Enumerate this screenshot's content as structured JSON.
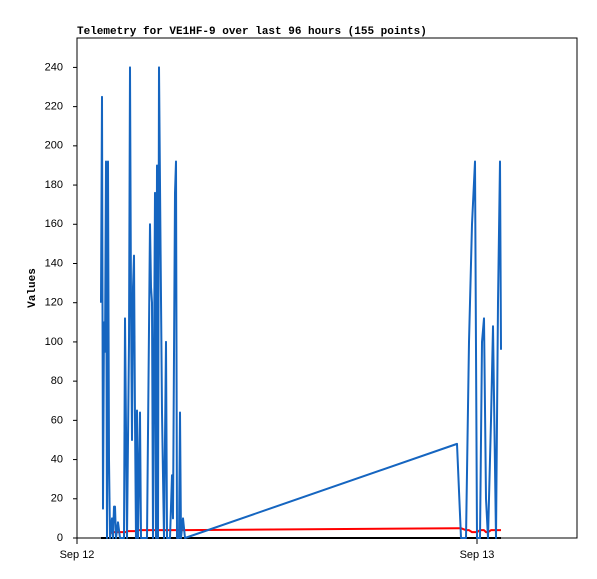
{
  "chart_data": {
    "type": "line",
    "title": "Telemetry for VE1HF-9 over last 96 hours (155 points)",
    "y_label": "Values",
    "x": [
      1.44,
      1.5,
      1.56,
      1.62,
      1.68,
      1.74,
      1.8,
      1.86,
      1.92,
      1.98,
      2.1,
      2.16,
      2.22,
      2.28,
      2.34,
      2.46,
      2.58,
      2.82,
      2.88,
      2.94,
      3.0,
      3.12,
      3.18,
      3.24,
      3.3,
      3.36,
      3.42,
      3.48,
      3.54,
      3.6,
      3.66,
      3.78,
      3.84,
      4.2,
      4.38,
      4.44,
      4.5,
      4.56,
      4.68,
      4.74,
      4.8,
      4.86,
      4.92,
      4.98,
      5.1,
      5.22,
      5.34,
      5.4,
      5.58,
      5.7,
      5.76,
      5.88,
      5.94,
      6.0,
      6.12,
      6.18,
      6.24,
      6.36,
      6.48,
      22.8,
      23.04,
      23.34,
      23.52,
      23.7,
      23.88,
      24.0,
      24.18,
      24.3,
      24.42,
      24.54,
      24.66,
      24.84,
      24.96,
      25.14,
      25.26,
      25.38,
      25.44
    ],
    "series": [
      {
        "color": "#000000",
        "values": [
          0,
          0,
          0,
          0,
          0,
          0,
          0,
          0,
          0,
          0,
          0,
          0,
          0,
          0,
          0,
          0,
          0,
          0,
          0,
          0,
          0,
          0,
          0,
          0,
          0,
          0,
          0,
          0,
          0,
          0,
          0,
          0,
          0,
          0,
          0,
          0,
          0,
          0,
          0,
          0,
          0,
          0,
          0,
          0,
          0,
          0,
          0,
          0,
          0,
          0,
          0,
          0,
          0,
          0,
          0,
          0,
          0,
          0,
          0,
          0,
          0,
          0,
          0,
          0,
          0,
          0,
          0,
          0,
          0,
          0,
          0,
          0,
          0,
          0,
          0,
          0,
          0
        ]
      },
      {
        "color": "#ff0000",
        "values": [
          null,
          null,
          null,
          null,
          null,
          null,
          null,
          null,
          null,
          2,
          3,
          3,
          3,
          3,
          3,
          3,
          3,
          3,
          3,
          3,
          3.5,
          3.5,
          3.5,
          3.5,
          3.5,
          3.5,
          3.5,
          3.5,
          3.5,
          3.5,
          4,
          4,
          4,
          4,
          4,
          4,
          4,
          4,
          4,
          4,
          4,
          4,
          4,
          4,
          4,
          4,
          4,
          4,
          4,
          4,
          4,
          4,
          4,
          4,
          4,
          4,
          4,
          4,
          4,
          5,
          5,
          4,
          4,
          3,
          3,
          3,
          4,
          4,
          4,
          3,
          3,
          4,
          4,
          4,
          4,
          4,
          4
        ]
      },
      {
        "color": "#1565c0",
        "values": [
          120,
          225,
          15,
          110,
          95,
          192,
          0,
          192,
          40,
          0,
          10,
          0,
          16,
          16,
          0,
          8,
          0,
          0,
          112,
          56,
          0,
          100,
          240,
          120,
          50,
          128,
          144,
          60,
          0,
          65,
          0,
          64,
          0,
          0,
          160,
          128,
          120,
          0,
          176,
          0,
          190,
          0,
          240,
          180,
          64,
          0,
          100,
          0,
          0,
          32,
          10,
          176,
          192,
          0,
          0,
          64,
          0,
          10,
          0,
          48,
          0,
          0,
          100,
          160,
          192,
          0,
          0,
          100,
          112,
          20,
          0,
          60,
          108,
          0,
          120,
          192,
          96
        ]
      }
    ],
    "xlim": [
      0,
      30
    ],
    "xticks": [
      {
        "value": 0,
        "label": "Sep 12"
      },
      {
        "value": 24,
        "label": "Sep 13"
      }
    ],
    "ylim": [
      0,
      255
    ],
    "yticks": [
      0,
      20,
      40,
      60,
      80,
      100,
      120,
      140,
      160,
      180,
      200,
      220,
      240
    ],
    "grid": false
  }
}
